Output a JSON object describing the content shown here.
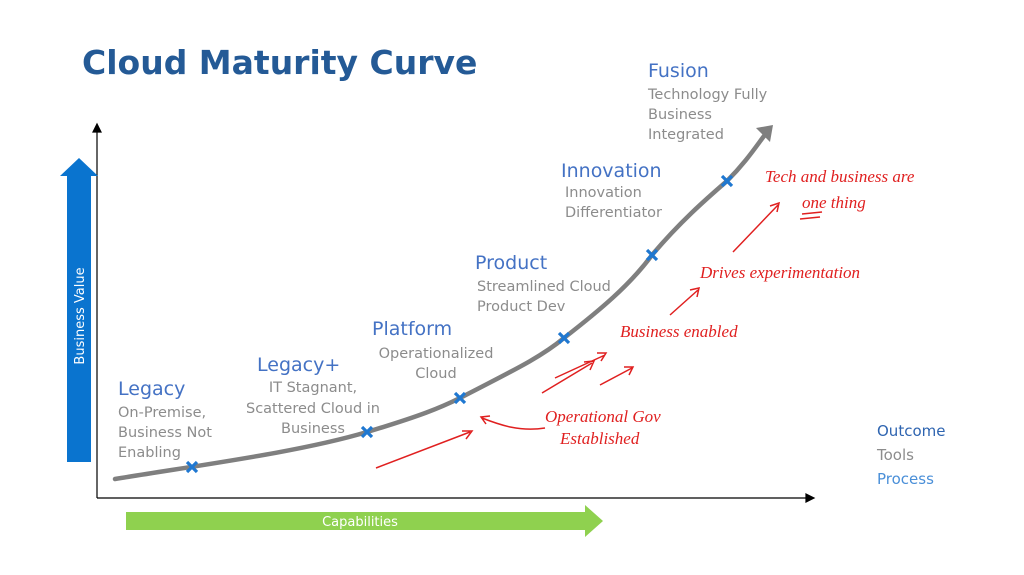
{
  "title": "Cloud Maturity Curve",
  "axes": {
    "y": "Business Value",
    "x": "Capabilities"
  },
  "stages": [
    {
      "name": "Legacy",
      "description": [
        "On-Premise,",
        "Business Not",
        "Enabling"
      ]
    },
    {
      "name": "Legacy+",
      "description": [
        "IT Stagnant,",
        "Scattered Cloud in",
        "Business"
      ]
    },
    {
      "name": "Platform",
      "description": [
        "Operationalized",
        "Cloud"
      ]
    },
    {
      "name": "Product",
      "description": [
        "Streamlined Cloud",
        "Product Dev"
      ]
    },
    {
      "name": "Innovation",
      "description": [
        "Innovation",
        "Differentiator"
      ]
    },
    {
      "name": "Fusion",
      "description": [
        "Technology Fully",
        "Business",
        "Integrated"
      ]
    }
  ],
  "legend": [
    "Outcome",
    "Tools",
    "Process"
  ],
  "annotations": [
    "Tech and business are",
    "one thing",
    "Drives experimentation",
    "Business enabled",
    "Operational Gov",
    "Established"
  ]
}
